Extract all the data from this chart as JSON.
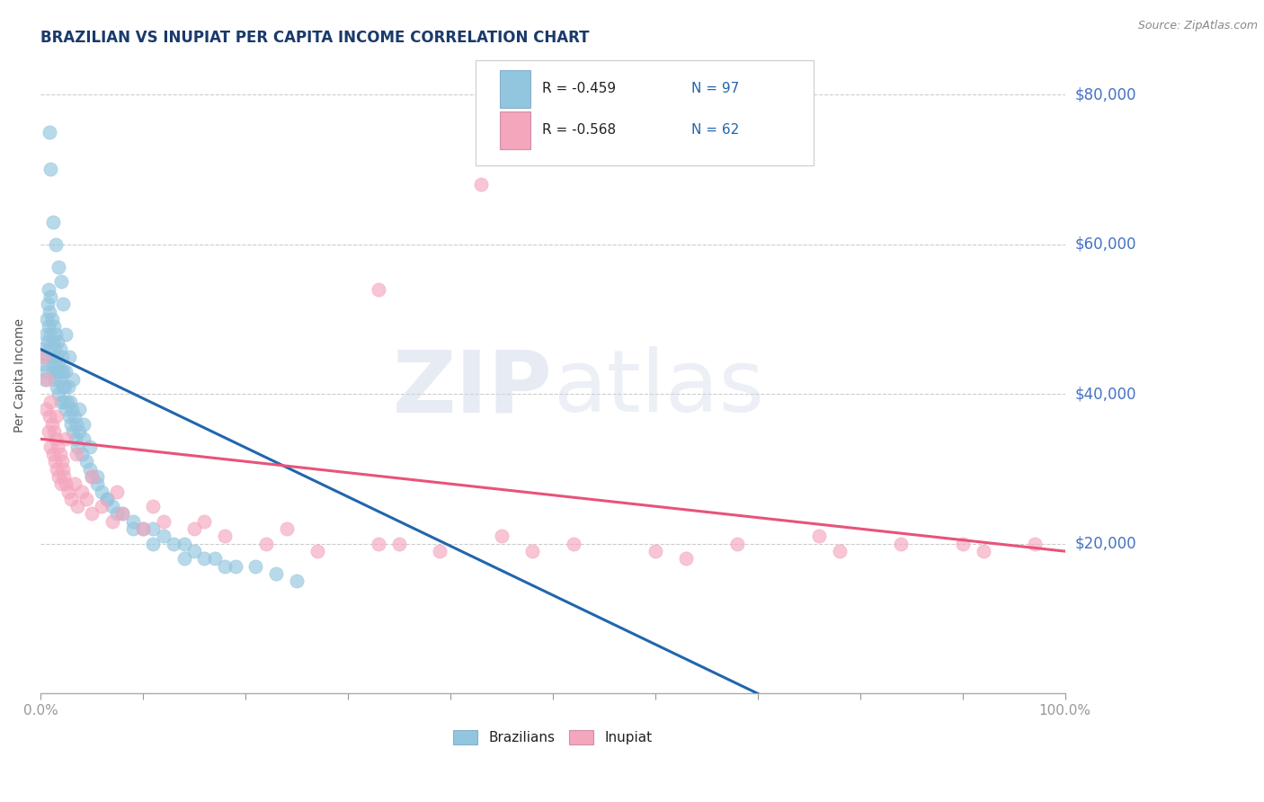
{
  "title": "BRAZILIAN VS INUPIAT PER CAPITA INCOME CORRELATION CHART",
  "source_text": "Source: ZipAtlas.com",
  "ylabel": "Per Capita Income",
  "xlabel": "",
  "xmin": 0.0,
  "xmax": 1.0,
  "ymin": 0,
  "ymax": 85000,
  "yticks": [
    20000,
    40000,
    60000,
    80000
  ],
  "ytick_labels": [
    "$20,000",
    "$40,000",
    "$60,000",
    "$80,000"
  ],
  "xticks": [
    0.0,
    0.1,
    0.2,
    0.3,
    0.4,
    0.5,
    0.6,
    0.7,
    0.8,
    0.9,
    1.0
  ],
  "xtick_labels_show": [
    "0.0%",
    "",
    "",
    "",
    "",
    "",
    "",
    "",
    "",
    "",
    "100.0%"
  ],
  "blue_color": "#92c5de",
  "pink_color": "#f4a6bd",
  "blue_line_color": "#2166ac",
  "pink_line_color": "#e8537a",
  "title_color": "#1a3a6b",
  "axis_label_color": "#333333",
  "tick_label_color": "#4472c4",
  "watermark_zip": "ZIP",
  "watermark_atlas": "atlas",
  "legend_r1": "R = -0.459",
  "legend_n1": "N = 97",
  "legend_r2": "R = -0.568",
  "legend_n2": "N = 62",
  "series1_label": "Brazilians",
  "series2_label": "Inupiat",
  "blue_scatter_x": [
    0.002,
    0.003,
    0.004,
    0.005,
    0.005,
    0.006,
    0.006,
    0.007,
    0.007,
    0.008,
    0.008,
    0.009,
    0.009,
    0.01,
    0.01,
    0.011,
    0.011,
    0.012,
    0.012,
    0.013,
    0.013,
    0.014,
    0.014,
    0.015,
    0.015,
    0.016,
    0.016,
    0.017,
    0.017,
    0.018,
    0.018,
    0.019,
    0.019,
    0.02,
    0.02,
    0.021,
    0.022,
    0.022,
    0.023,
    0.024,
    0.025,
    0.025,
    0.026,
    0.027,
    0.028,
    0.029,
    0.03,
    0.031,
    0.032,
    0.033,
    0.034,
    0.035,
    0.036,
    0.038,
    0.04,
    0.042,
    0.045,
    0.048,
    0.05,
    0.055,
    0.06,
    0.065,
    0.07,
    0.08,
    0.09,
    0.1,
    0.11,
    0.12,
    0.13,
    0.14,
    0.15,
    0.16,
    0.17,
    0.19,
    0.21,
    0.23,
    0.25,
    0.009,
    0.01,
    0.012,
    0.015,
    0.018,
    0.02,
    0.022,
    0.025,
    0.028,
    0.032,
    0.038,
    0.042,
    0.048,
    0.055,
    0.065,
    0.075,
    0.09,
    0.11,
    0.14,
    0.18
  ],
  "blue_scatter_y": [
    46000,
    44000,
    42000,
    48000,
    43000,
    50000,
    45000,
    52000,
    47000,
    54000,
    49000,
    51000,
    46000,
    53000,
    48000,
    50000,
    45000,
    47000,
    43000,
    49000,
    44000,
    46000,
    42000,
    48000,
    43000,
    45000,
    41000,
    47000,
    43000,
    44000,
    40000,
    46000,
    42000,
    43000,
    39000,
    45000,
    41000,
    43000,
    39000,
    41000,
    38000,
    43000,
    39000,
    41000,
    37000,
    39000,
    36000,
    38000,
    35000,
    37000,
    34000,
    36000,
    33000,
    35000,
    32000,
    34000,
    31000,
    30000,
    29000,
    28000,
    27000,
    26000,
    25000,
    24000,
    23000,
    22000,
    22000,
    21000,
    20000,
    20000,
    19000,
    18000,
    18000,
    17000,
    17000,
    16000,
    15000,
    75000,
    70000,
    63000,
    60000,
    57000,
    55000,
    52000,
    48000,
    45000,
    42000,
    38000,
    36000,
    33000,
    29000,
    26000,
    24000,
    22000,
    20000,
    18000,
    17000
  ],
  "pink_scatter_x": [
    0.003,
    0.005,
    0.006,
    0.008,
    0.009,
    0.01,
    0.011,
    0.012,
    0.013,
    0.014,
    0.015,
    0.016,
    0.017,
    0.018,
    0.019,
    0.02,
    0.021,
    0.022,
    0.023,
    0.025,
    0.027,
    0.03,
    0.033,
    0.036,
    0.04,
    0.045,
    0.05,
    0.06,
    0.07,
    0.08,
    0.1,
    0.12,
    0.15,
    0.18,
    0.22,
    0.27,
    0.33,
    0.39,
    0.45,
    0.52,
    0.6,
    0.68,
    0.76,
    0.84,
    0.92,
    0.97,
    0.01,
    0.015,
    0.025,
    0.035,
    0.05,
    0.075,
    0.11,
    0.16,
    0.24,
    0.35,
    0.48,
    0.63,
    0.78,
    0.9,
    0.43,
    0.33
  ],
  "pink_scatter_y": [
    45000,
    38000,
    42000,
    35000,
    37000,
    33000,
    36000,
    32000,
    35000,
    31000,
    34000,
    30000,
    33000,
    29000,
    32000,
    28000,
    31000,
    30000,
    29000,
    28000,
    27000,
    26000,
    28000,
    25000,
    27000,
    26000,
    24000,
    25000,
    23000,
    24000,
    22000,
    23000,
    22000,
    21000,
    20000,
    19000,
    20000,
    19000,
    21000,
    20000,
    19000,
    20000,
    21000,
    20000,
    19000,
    20000,
    39000,
    37000,
    34000,
    32000,
    29000,
    27000,
    25000,
    23000,
    22000,
    20000,
    19000,
    18000,
    19000,
    20000,
    68000,
    54000
  ],
  "blue_line_x0": 0.0,
  "blue_line_x1": 0.7,
  "blue_line_y0": 46000,
  "blue_line_y1": 0,
  "pink_line_x0": 0.0,
  "pink_line_x1": 1.0,
  "pink_line_y0": 34000,
  "pink_line_y1": 19000,
  "background_color": "#ffffff",
  "grid_color": "#cccccc",
  "title_fontsize": 12,
  "label_fontsize": 10
}
